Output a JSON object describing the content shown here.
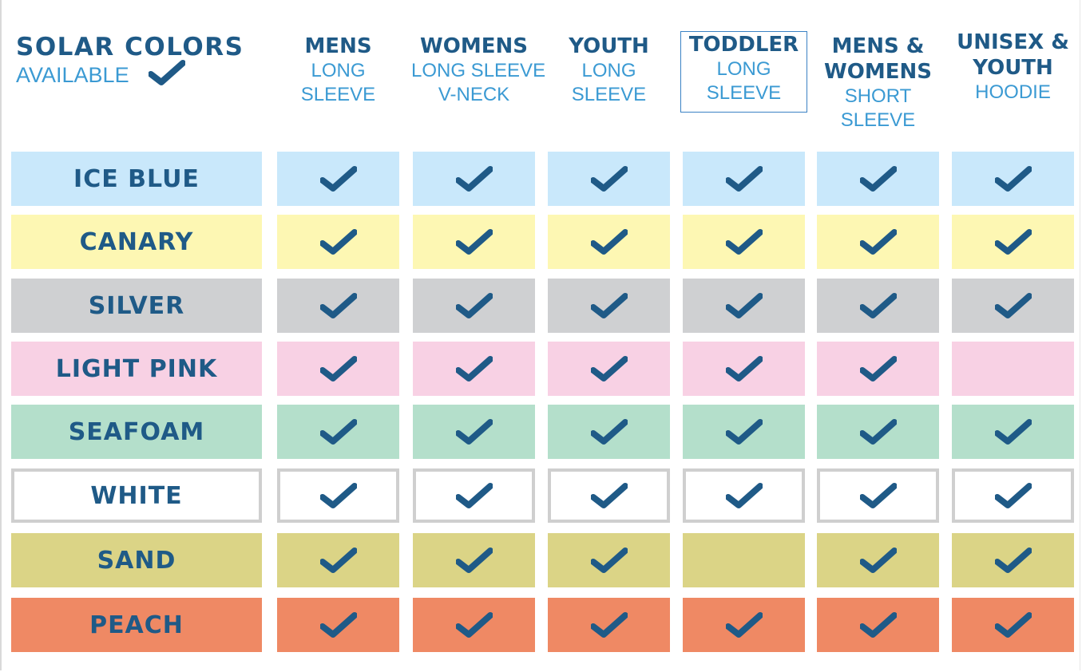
{
  "legend": {
    "title": "SOLAR COLORS",
    "subtitle": "AVAILABLE",
    "check_icon": "check-icon"
  },
  "columns": [
    {
      "title": "MENS",
      "subtitle": "LONG\nSLEEVE",
      "highlighted": false
    },
    {
      "title": "WOMENS",
      "subtitle": "LONG SLEEVE\nV-NECK",
      "highlighted": false
    },
    {
      "title": "YOUTH",
      "subtitle": "LONG\nSLEEVE",
      "highlighted": false
    },
    {
      "title": "TODDLER",
      "subtitle": "LONG\nSLEEVE",
      "highlighted": true
    },
    {
      "title": "MENS &\nWOMENS",
      "subtitle": "SHORT\nSLEEVE",
      "highlighted": false
    },
    {
      "title": "UNISEX &\nYOUTH",
      "subtitle": "HOODIE",
      "highlighted": false
    }
  ],
  "rows": [
    {
      "color": "ICE BLUE",
      "bg": "#c9e8fb",
      "outlined": false,
      "available": [
        true,
        true,
        true,
        true,
        true,
        true
      ]
    },
    {
      "color": "CANARY",
      "bg": "#fdf7b3",
      "outlined": false,
      "available": [
        true,
        true,
        true,
        true,
        true,
        true
      ]
    },
    {
      "color": "SILVER",
      "bg": "#cfd0d2",
      "outlined": false,
      "available": [
        true,
        true,
        true,
        true,
        true,
        true
      ]
    },
    {
      "color": "LIGHT PINK",
      "bg": "#f8d1e4",
      "outlined": false,
      "available": [
        true,
        true,
        true,
        true,
        true,
        false
      ]
    },
    {
      "color": "SEAFOAM",
      "bg": "#b4dfcb",
      "outlined": false,
      "available": [
        true,
        true,
        true,
        true,
        true,
        true
      ]
    },
    {
      "color": "WHITE",
      "bg": "#ffffff",
      "outlined": true,
      "available": [
        true,
        true,
        true,
        true,
        true,
        true
      ]
    },
    {
      "color": "SAND",
      "bg": "#dbd486",
      "outlined": false,
      "available": [
        true,
        true,
        true,
        false,
        true,
        true
      ]
    },
    {
      "color": "PEACH",
      "bg": "#ef8964",
      "outlined": false,
      "available": [
        true,
        true,
        true,
        true,
        true,
        true
      ]
    }
  ],
  "colors": {
    "heading": "#1f5a87",
    "subheading": "#3b9ad3",
    "check": "#1f5a87",
    "outline": "#cfcfcf"
  }
}
